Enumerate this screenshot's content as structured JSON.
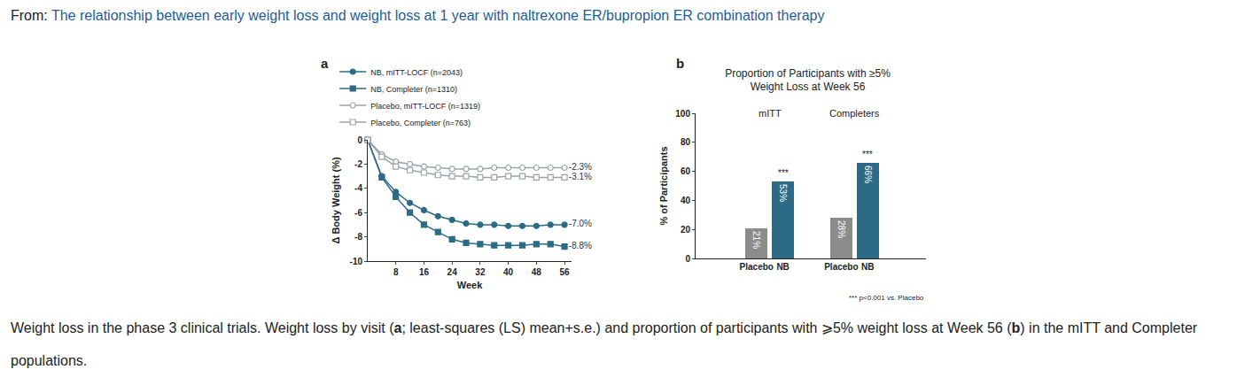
{
  "header": {
    "prefix": "From: ",
    "title": "The relationship between early weight loss and weight loss at 1 year with naltrexone ER/bupropion ER combination therapy"
  },
  "chart_data": [
    {
      "panel": "a",
      "type": "line",
      "xlabel": "Week",
      "ylabel": "Δ Body Weight (%)",
      "x": [
        0,
        4,
        8,
        12,
        16,
        20,
        24,
        28,
        32,
        36,
        40,
        44,
        48,
        52,
        56
      ],
      "xlim": [
        0,
        58
      ],
      "xticks": [
        8,
        16,
        24,
        32,
        40,
        48,
        56
      ],
      "ylim": [
        -10,
        0
      ],
      "yticks": [
        0,
        -2,
        -4,
        -6,
        -8,
        -10
      ],
      "legend": "top",
      "data_labels": true,
      "series": [
        {
          "name": "NB, mITT-LOCF (n=2043)",
          "color": "#2c6b88",
          "marker": "circle",
          "line_style": "solid",
          "values": [
            0,
            -3.0,
            -4.3,
            -5.2,
            -5.8,
            -6.3,
            -6.6,
            -6.9,
            -7.0,
            -7.0,
            -7.1,
            -7.1,
            -7.1,
            -7.0,
            -7.0
          ],
          "value_labels": [
            null,
            null,
            null,
            null,
            null,
            null,
            null,
            null,
            null,
            null,
            null,
            null,
            null,
            null,
            "-7.0%"
          ]
        },
        {
          "name": "NB, Completer (n=1310)",
          "color": "#2c6b88",
          "marker": "square",
          "line_style": "solid",
          "values": [
            0,
            -3.1,
            -4.7,
            -6.0,
            -7.0,
            -7.6,
            -8.2,
            -8.5,
            -8.6,
            -8.7,
            -8.7,
            -8.7,
            -8.6,
            -8.6,
            -8.8
          ],
          "value_labels": [
            null,
            null,
            null,
            null,
            null,
            null,
            null,
            null,
            null,
            null,
            null,
            null,
            null,
            null,
            "-8.8%"
          ]
        },
        {
          "name": "Placebo, mITT-LOCF (n=1319)",
          "color": "#9aa3aa",
          "marker": "circle-open",
          "line_style": "solid",
          "values": [
            0,
            -1.2,
            -1.8,
            -2.0,
            -2.2,
            -2.3,
            -2.4,
            -2.4,
            -2.4,
            -2.3,
            -2.3,
            -2.3,
            -2.3,
            -2.3,
            -2.3
          ],
          "value_labels": [
            null,
            null,
            null,
            null,
            null,
            null,
            null,
            null,
            null,
            null,
            null,
            null,
            null,
            null,
            "-2.3%"
          ]
        },
        {
          "name": "Placebo, Completer (n=763)",
          "color": "#9aa3aa",
          "marker": "square-open",
          "line_style": "solid",
          "values": [
            0,
            -1.4,
            -2.2,
            -2.5,
            -2.7,
            -2.9,
            -3.0,
            -3.0,
            -3.1,
            -3.1,
            -3.0,
            -3.0,
            -3.1,
            -3.1,
            -3.1
          ],
          "value_labels": [
            null,
            null,
            null,
            null,
            null,
            null,
            null,
            null,
            null,
            null,
            null,
            null,
            null,
            null,
            "-3.1%"
          ]
        }
      ]
    },
    {
      "panel": "b",
      "type": "bar",
      "title": [
        "Proportion of Participants with ≥5%",
        "Weight Loss at Week 56"
      ],
      "ylabel": "% of Participants",
      "groups": [
        "mITT",
        "mITT",
        "Completers",
        "Completers"
      ],
      "categories": [
        "Placebo",
        "NB",
        "Placebo",
        "NB"
      ],
      "values": [
        21,
        53,
        28,
        66
      ],
      "value_labels": [
        "21%",
        "53%",
        "28%",
        "66%"
      ],
      "colors": [
        "#8c8c8c",
        "#2c6b88",
        "#8c8c8c",
        "#2c6b88"
      ],
      "data_labels": true,
      "significance": [
        null,
        "***",
        null,
        "***"
      ],
      "note": "*** p<0.001 vs. Placebo",
      "ylim": [
        0,
        100
      ],
      "yticks": [
        0,
        20,
        40,
        60,
        80,
        100
      ]
    }
  ],
  "caption": [
    {
      "text": "Weight loss in the phase 3 clinical trials. Weight loss by visit ("
    },
    {
      "text": "a",
      "bold": true
    },
    {
      "text": "; least-squares (LS) mean+s.e.) and proportion of participants with ⩾5% weight loss at Week 56 ("
    },
    {
      "text": "b",
      "bold": true
    },
    {
      "text": ") in the mITT and Completer populations."
    }
  ]
}
